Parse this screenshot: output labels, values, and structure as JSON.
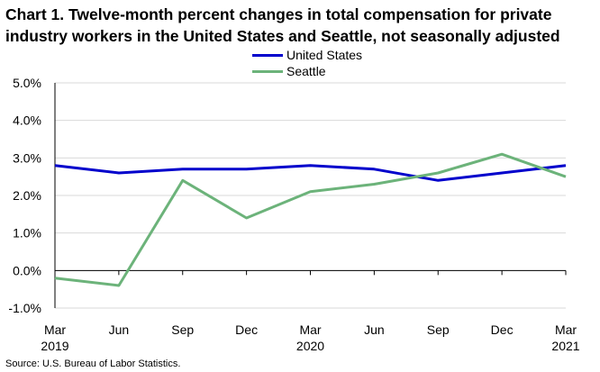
{
  "chart_data": {
    "type": "line",
    "title": "Chart 1. Twelve-month percent changes in total compensation for private industry workers in the United States and Seattle, not seasonally adjusted",
    "x": [
      "Mar 2019",
      "Jun 2019",
      "Sep 2019",
      "Dec 2019",
      "Mar 2020",
      "Jun 2020",
      "Sep 2020",
      "Dec 2020",
      "Mar 2021"
    ],
    "x_tick_labels": [
      "Mar",
      "Jun",
      "Sep",
      "Dec",
      "Mar",
      "Jun",
      "Sep",
      "Dec",
      "Mar"
    ],
    "x_year_labels": [
      {
        "index": 0,
        "label": "2019"
      },
      {
        "index": 4,
        "label": "2020"
      },
      {
        "index": 8,
        "label": "2021"
      }
    ],
    "ylim": [
      -1.0,
      5.0
    ],
    "y_ticks": [
      -1.0,
      0.0,
      1.0,
      2.0,
      3.0,
      4.0,
      5.0
    ],
    "y_tick_labels": [
      "-1.0%",
      "0.0%",
      "1.0%",
      "2.0%",
      "3.0%",
      "4.0%",
      "5.0%"
    ],
    "grid": true,
    "legend_position": "top-center",
    "series": [
      {
        "name": "United States",
        "color": "#0000cc",
        "values": [
          2.8,
          2.6,
          2.7,
          2.7,
          2.8,
          2.7,
          2.4,
          2.6,
          2.8
        ]
      },
      {
        "name": "Seattle",
        "color": "#6cb37a",
        "values": [
          -0.2,
          -0.4,
          2.4,
          1.4,
          2.1,
          2.3,
          2.6,
          3.1,
          2.5
        ]
      }
    ],
    "source": "Source: U.S. Bureau of Labor Statistics."
  }
}
